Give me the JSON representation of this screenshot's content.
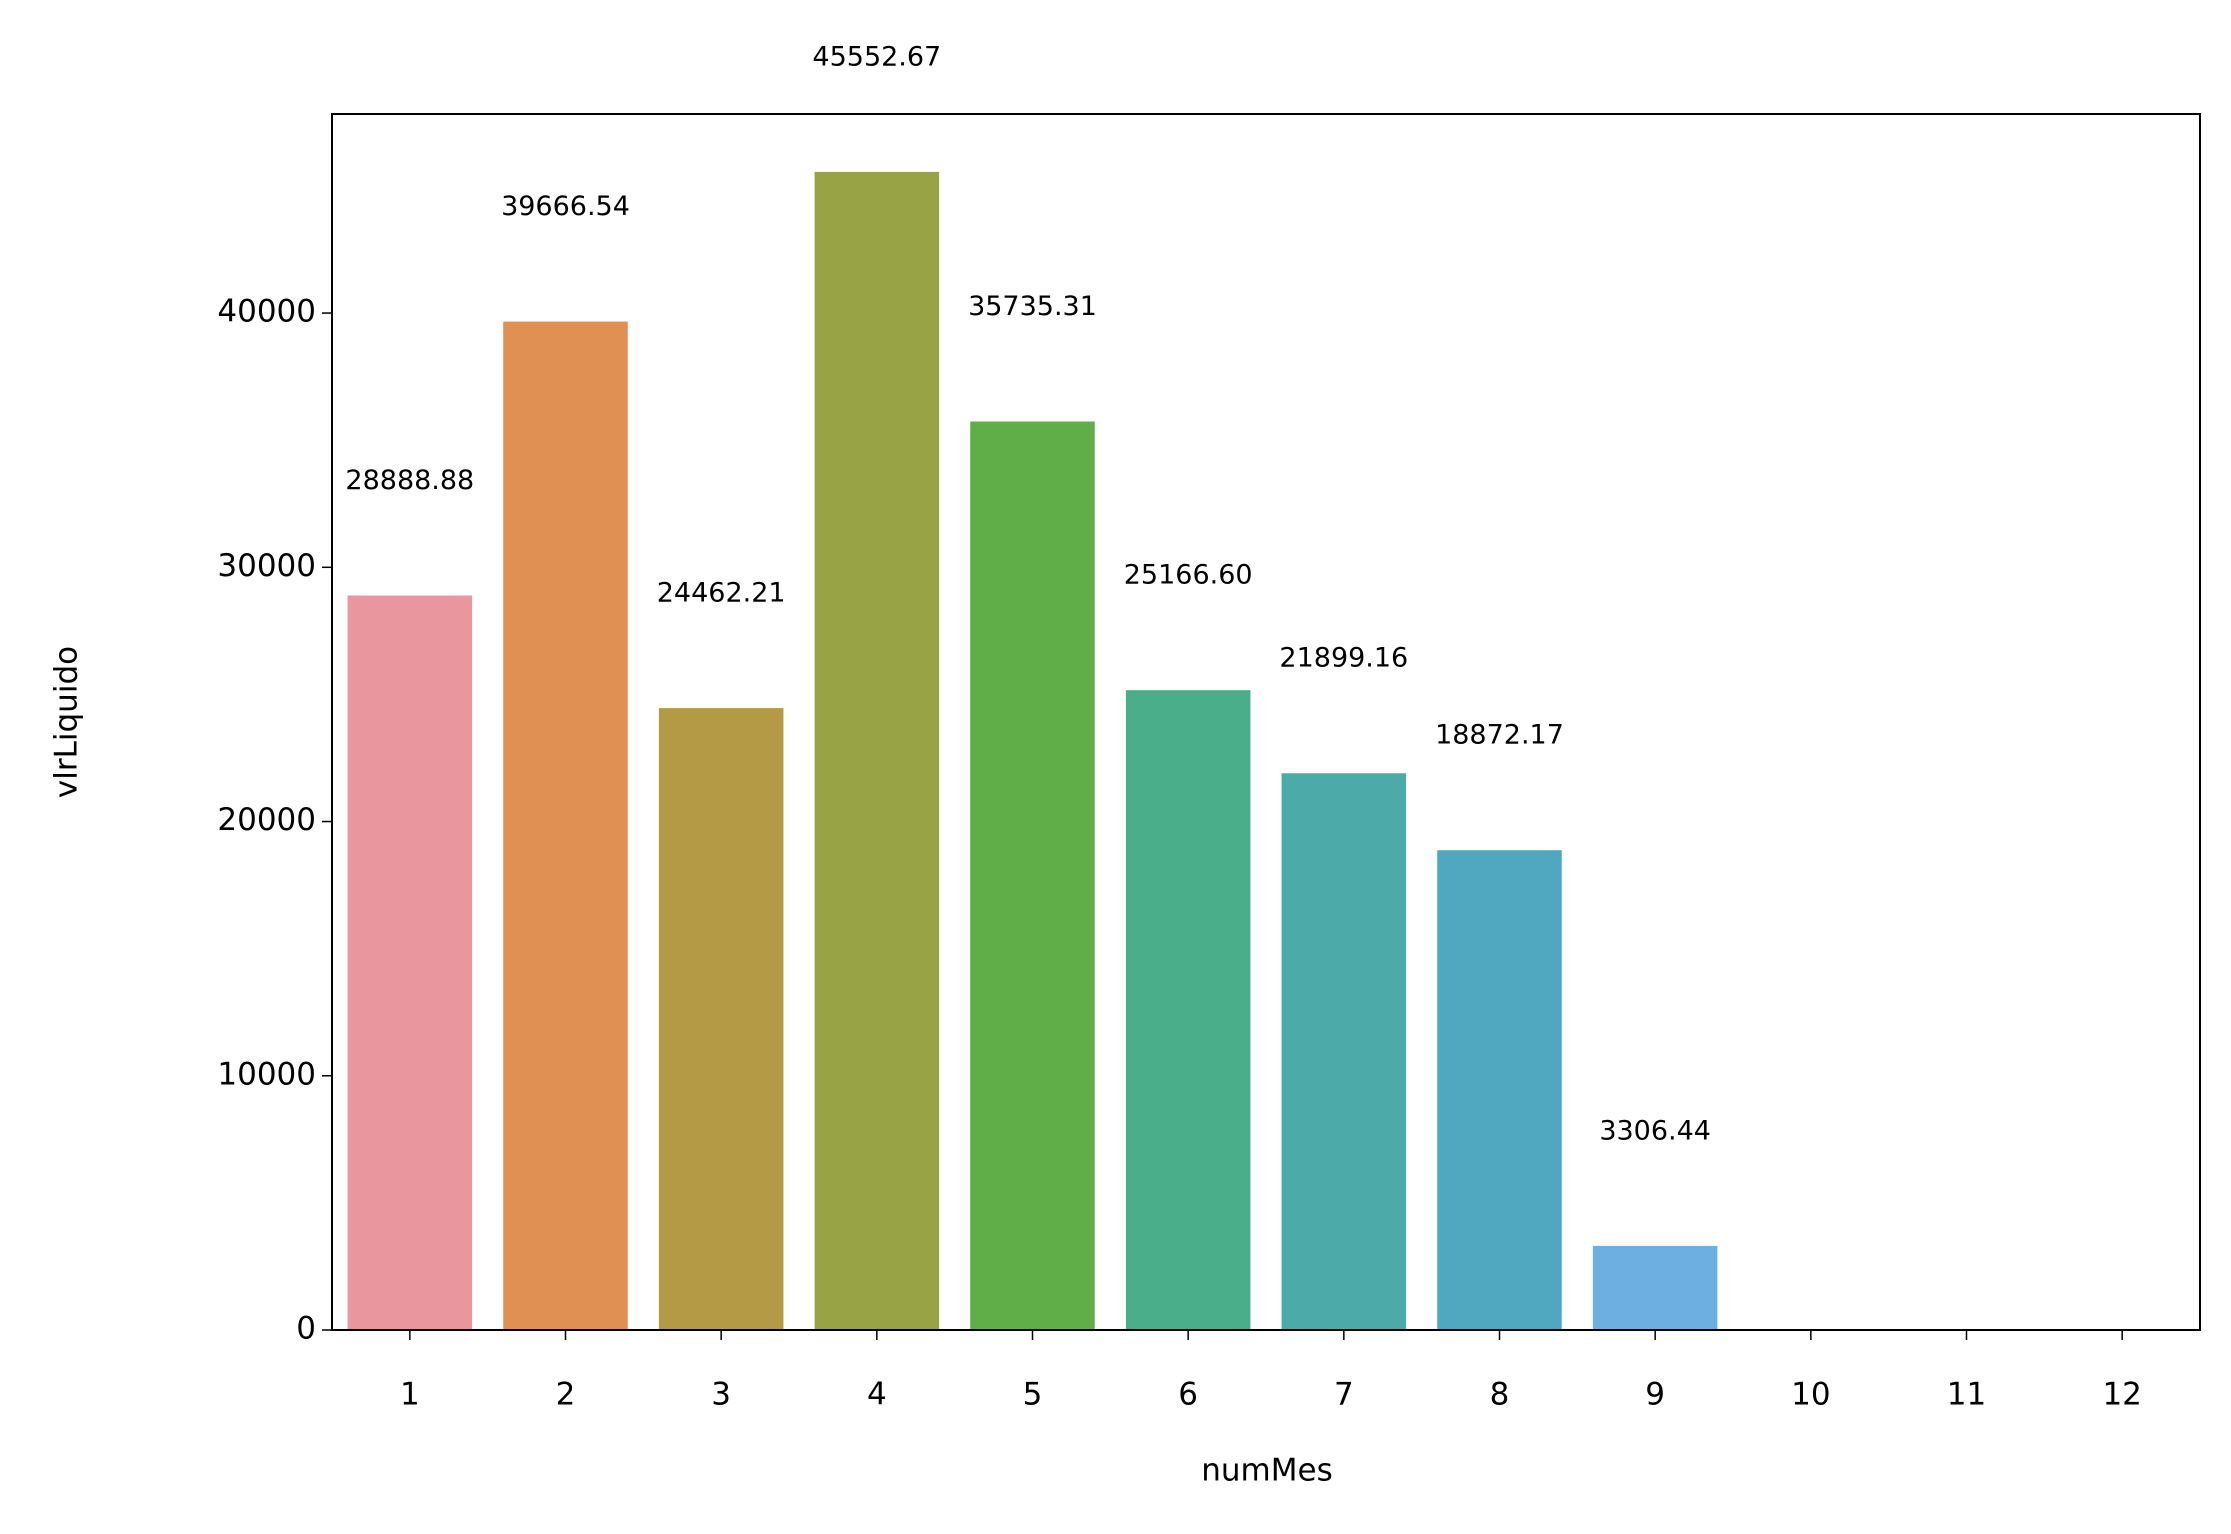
{
  "chart_data": {
    "type": "bar",
    "x_label": "numMes",
    "y_label": "vlrLiquido",
    "categories": [
      "1",
      "2",
      "3",
      "4",
      "5",
      "6",
      "7",
      "8",
      "9",
      "10",
      "11",
      "12"
    ],
    "values": [
      28888.88,
      39666.54,
      24462.21,
      45552.67,
      35735.31,
      25166.6,
      21899.16,
      18872.17,
      3306.44,
      null,
      null,
      null
    ],
    "value_labels": [
      "28888.88",
      "39666.54",
      "24462.21",
      "45552.67",
      "35735.31",
      "25166.60",
      "21899.16",
      "18872.17",
      "3306.44",
      null,
      null,
      null
    ],
    "colors": [
      "#e9969f",
      "#e09052",
      "#b59a45",
      "#98a346",
      "#60ae47",
      "#4aae8a",
      "#4caaa9",
      "#4fa8bf",
      "#6eafe1",
      null,
      null,
      null
    ],
    "ylim": [
      0,
      47830
    ],
    "yticks": [
      0,
      10000,
      20000,
      30000,
      40000
    ],
    "grid": false
  }
}
